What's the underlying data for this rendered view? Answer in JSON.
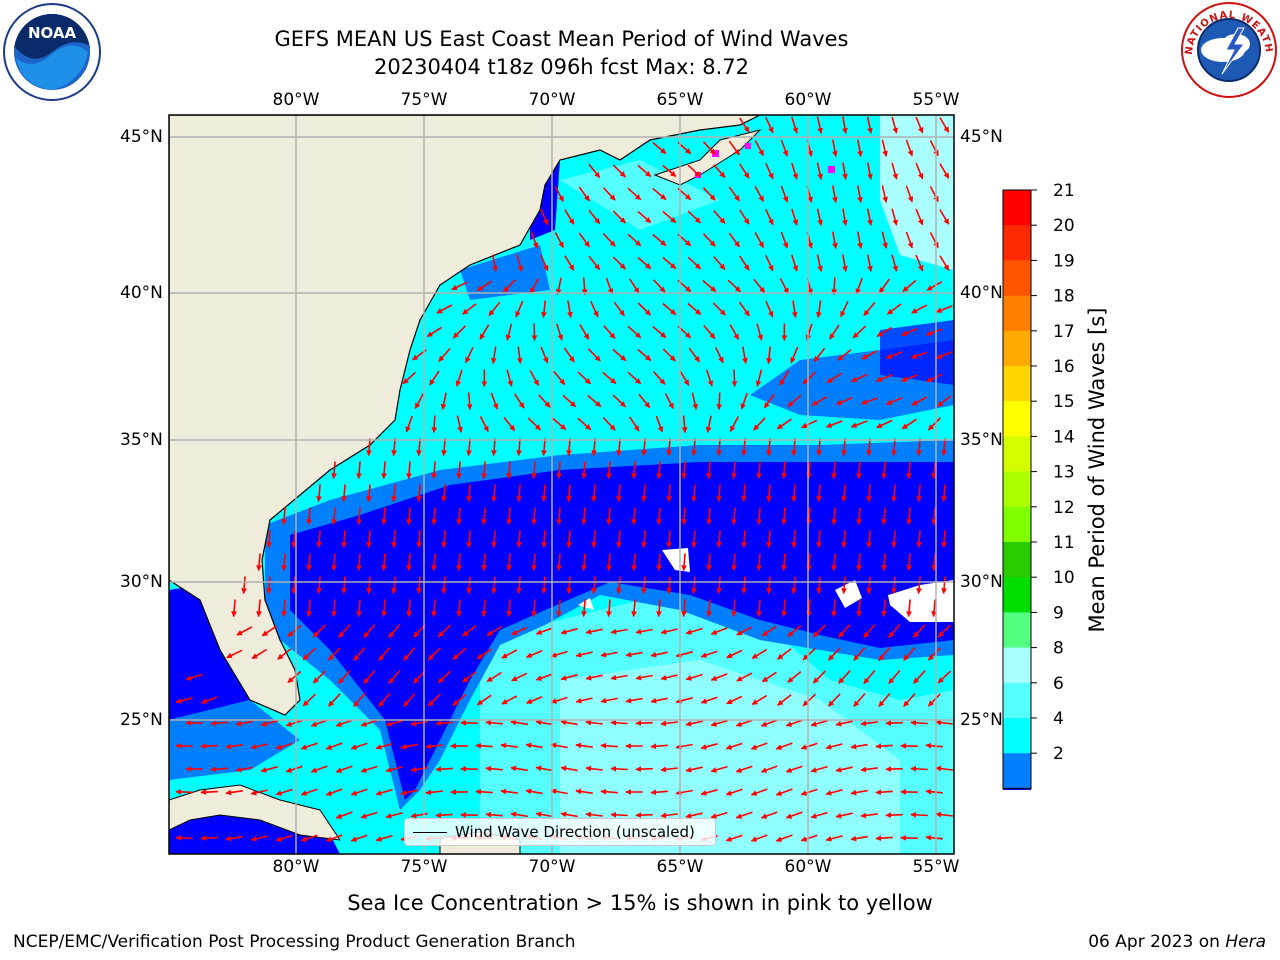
{
  "title": {
    "line1": "GEFS MEAN US East Coast Mean Period of Wind Waves",
    "line2": "20230404 t18z 096h fcst   Max: 8.72"
  },
  "logos": {
    "left": {
      "name": "noaa-logo",
      "text": "NOAA"
    },
    "right": {
      "name": "national-weather-service-logo",
      "text": "NATIONAL WEATHER SERVICE"
    }
  },
  "map": {
    "lon_labels": [
      "80°W",
      "75°W",
      "70°W",
      "65°W",
      "60°W",
      "55°W"
    ],
    "lat_labels": [
      "45°N",
      "40°N",
      "35°N",
      "30°N",
      "25°N"
    ],
    "land_color": "#efecdc",
    "arrow_color": "#ff0000",
    "legend": "Wind Wave Direction (unscaled)"
  },
  "colorbar": {
    "label": "Mean Period of Wind Waves [s]",
    "ticks": [
      "21",
      "20",
      "19",
      "18",
      "17",
      "16",
      "15",
      "14",
      "13",
      "12",
      "11",
      "10",
      "9",
      "8",
      "6",
      "4",
      "2"
    ],
    "colors": [
      "#ff0000",
      "#ff2a00",
      "#ff5500",
      "#ff8000",
      "#ffaa00",
      "#ffd400",
      "#ffff00",
      "#d4ff00",
      "#aaff00",
      "#80ff00",
      "#2acc00",
      "#00dd00",
      "#55ff80",
      "#aaffff",
      "#55ffff",
      "#00ffff",
      "#0080ff"
    ],
    "under_color": "#0000ff"
  },
  "note": "Sea Ice Concentration > 15% is shown in pink to yellow",
  "footer": {
    "left": "NCEP/EMC/Verification Post Processing Product Generation Branch",
    "right_date": "06 Apr 2023 on ",
    "right_machine": "Hera"
  }
}
